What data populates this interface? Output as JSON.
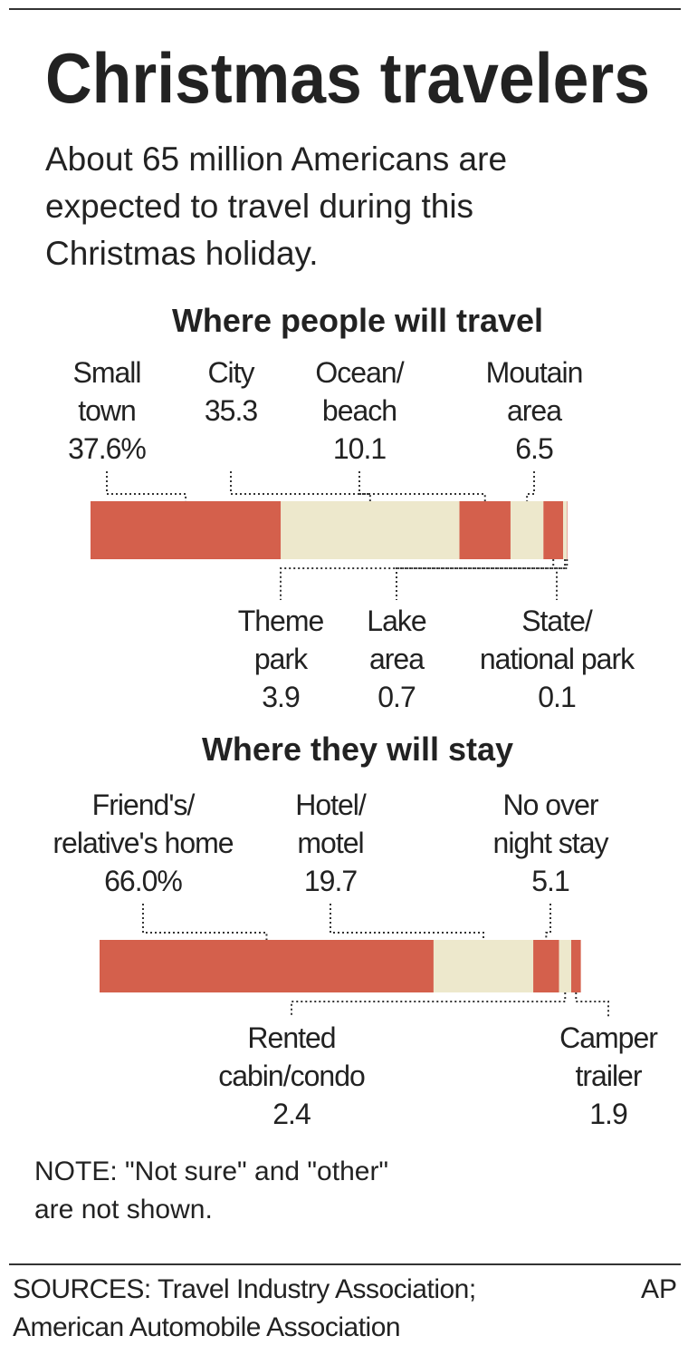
{
  "title": "Christmas travelers",
  "subtitle": "About 65 million Americans are\nexpected to travel during this\nChristmas holiday.",
  "chart_data": [
    {
      "type": "stacked-bar",
      "title": "Where people will travel",
      "categories": [
        "Small\ntown",
        "City",
        "Ocean/\nbeach",
        "Moutain\narea",
        "Theme\npark",
        "Lake\narea",
        "State/\nnational park"
      ],
      "values": [
        37.6,
        35.3,
        10.1,
        6.5,
        3.9,
        0.7,
        0.1
      ],
      "value_labels": [
        "37.6%",
        "35.3",
        "10.1",
        "6.5",
        "3.9",
        "0.7",
        "0.1"
      ],
      "colors": [
        "#d4604c",
        "#ede8cc",
        "#d4604c",
        "#ede8cc",
        "#d4604c",
        "#ede8cc",
        "#d4604c"
      ]
    },
    {
      "type": "stacked-bar",
      "title": "Where they will stay",
      "categories": [
        "Friend's/\nrelative's home",
        "Hotel/\nmotel",
        "No over\nnight stay",
        "Rented\ncabin/condo",
        "Camper\ntrailer"
      ],
      "values": [
        66.0,
        19.7,
        5.1,
        2.4,
        1.9
      ],
      "value_labels": [
        "66.0%",
        "19.7",
        "5.1",
        "2.4",
        "1.9"
      ],
      "colors": [
        "#d4604c",
        "#ede8cc",
        "#d4604c",
        "#ede8cc",
        "#d4604c"
      ]
    }
  ],
  "note": "NOTE: \"Not sure\" and \"other\"\nare not shown.",
  "sources": "SOURCES: Travel Industry Association;\nAmerican Automobile Association",
  "credit": "AP"
}
